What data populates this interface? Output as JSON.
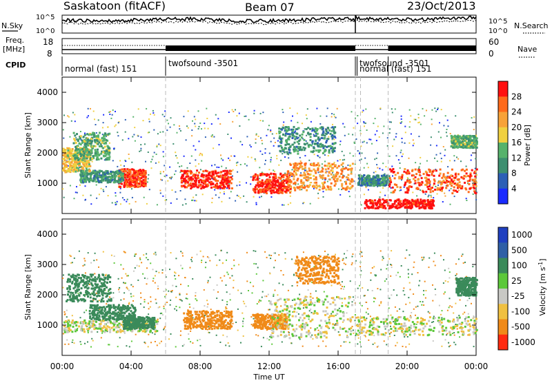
{
  "header": {
    "station": "Saskatoon (fitACF)",
    "beam": "Beam 07",
    "date": "23/Oct/2013"
  },
  "top_labels": {
    "nsky": "N.Sky",
    "nsearch": "N.Search",
    "nsky_ticks": [
      "10^5",
      "10^0"
    ],
    "nsearch_ticks": [
      "10^5",
      "10^0"
    ],
    "freq_label_1": "Freq.",
    "freq_label_2": "[MHz]",
    "freq_ticks": [
      "18",
      "8"
    ],
    "nave_label": "Nave",
    "nave_ticks": [
      "60",
      "0"
    ],
    "cpid": "CPID"
  },
  "cpid_segments": [
    {
      "label": "normal (fast) 151",
      "start_h": 0.0,
      "end_h": 6.0
    },
    {
      "label": "twofsound -3501",
      "start_h": 6.0,
      "end_h": 17.0
    },
    {
      "label": "twofsound -3501",
      "start_h": 17.0,
      "end_h": 24.0
    },
    {
      "label": "normal (fast) 151",
      "start_h": 17.1,
      "end_h": 18.9
    }
  ],
  "colors": {
    "power_scale": [
      "#1a2bff",
      "#2c5fb6",
      "#3d8f70",
      "#56b26b",
      "#f0d040",
      "#f7a238",
      "#ff6a1a",
      "#ff1010"
    ],
    "velocity_scale": [
      "#2040c0",
      "#2f5fa6",
      "#3a8a5a",
      "#5cc83a",
      "#c8c8c4",
      "#f0c040",
      "#f08a18",
      "#ff2a10"
    ]
  },
  "chart_data": [
    {
      "type": "heatmap",
      "title": "",
      "xlabel": "Time UT",
      "ylabel": "Slant Range [km]",
      "xlim": [
        0,
        24
      ],
      "ylim": [
        0,
        4500
      ],
      "x_ticks": [
        "00:00",
        "04:00",
        "08:00",
        "12:00",
        "16:00",
        "20:00",
        "00:00"
      ],
      "y_ticks": [
        "1000",
        "2000",
        "3000",
        "4000"
      ],
      "colorbar": {
        "label": "Power [dB]",
        "ticks": [
          "4",
          "8",
          "12",
          "16",
          "20",
          "24",
          "28"
        ],
        "range": [
          0,
          30
        ]
      },
      "regions": [
        {
          "t0": 0.0,
          "t1": 1.6,
          "r0": 1400,
          "r1": 2200,
          "v": 18
        },
        {
          "t0": 0.6,
          "t1": 2.7,
          "r0": 1800,
          "r1": 2700,
          "v": 12
        },
        {
          "t0": 3.2,
          "t1": 4.8,
          "r0": 900,
          "r1": 1500,
          "v": 26
        },
        {
          "t0": 1.0,
          "t1": 3.5,
          "r0": 1050,
          "r1": 1450,
          "v": 10
        },
        {
          "t0": 6.8,
          "t1": 9.8,
          "r0": 850,
          "r1": 1450,
          "v": 28
        },
        {
          "t0": 11.0,
          "t1": 13.2,
          "r0": 700,
          "r1": 1350,
          "v": 27
        },
        {
          "t0": 13.0,
          "t1": 16.8,
          "r0": 800,
          "r1": 1700,
          "v": 22
        },
        {
          "t0": 12.5,
          "t1": 15.8,
          "r0": 2000,
          "r1": 2900,
          "v": 10
        },
        {
          "t0": 17.1,
          "t1": 18.9,
          "r0": 950,
          "r1": 1300,
          "v": 9
        },
        {
          "t0": 18.9,
          "t1": 24.0,
          "r0": 700,
          "r1": 1500,
          "v": 25
        },
        {
          "t0": 22.5,
          "t1": 24.0,
          "r0": 2200,
          "r1": 2600,
          "v": 12
        },
        {
          "t0": 17.5,
          "t1": 21.5,
          "r0": 200,
          "r1": 500,
          "v": 29
        }
      ]
    },
    {
      "type": "heatmap",
      "title": "",
      "xlabel": "Time UT",
      "ylabel": "Slant Range [km]",
      "xlim": [
        0,
        24
      ],
      "ylim": [
        0,
        4500
      ],
      "x_ticks": [
        "00:00",
        "04:00",
        "08:00",
        "12:00",
        "16:00",
        "20:00",
        "00:00"
      ],
      "y_ticks": [
        "1000",
        "2000",
        "3000",
        "4000"
      ],
      "colorbar": {
        "label": "Velocity [m s^-1]",
        "ticks": [
          "1000",
          "500",
          "100",
          "25",
          "-25",
          "-100",
          "-500",
          "-1000"
        ],
        "range": [
          -1000,
          1000
        ]
      },
      "regions": [
        {
          "t0": 0.0,
          "t1": 5.5,
          "r0": 800,
          "r1": 1200,
          "v": 0
        },
        {
          "t0": 0.2,
          "t1": 2.8,
          "r0": 1800,
          "r1": 2700,
          "v": 200
        },
        {
          "t0": 1.5,
          "t1": 4.2,
          "r0": 1200,
          "r1": 1700,
          "v": 200
        },
        {
          "t0": 3.5,
          "t1": 5.3,
          "r0": 900,
          "r1": 1300,
          "v": 400
        },
        {
          "t0": 7.0,
          "t1": 9.8,
          "r0": 900,
          "r1": 1500,
          "v": -200
        },
        {
          "t0": 11.0,
          "t1": 13.0,
          "r0": 900,
          "r1": 1400,
          "v": -300
        },
        {
          "t0": 12.0,
          "t1": 16.8,
          "r0": 600,
          "r1": 2000,
          "v": 0
        },
        {
          "t0": 13.5,
          "t1": 16.0,
          "r0": 2400,
          "r1": 3300,
          "v": -300
        },
        {
          "t0": 17.0,
          "t1": 24.0,
          "r0": 700,
          "r1": 1300,
          "v": 0
        },
        {
          "t0": 22.8,
          "t1": 24.0,
          "r0": 2000,
          "r1": 2600,
          "v": 300
        }
      ]
    }
  ]
}
